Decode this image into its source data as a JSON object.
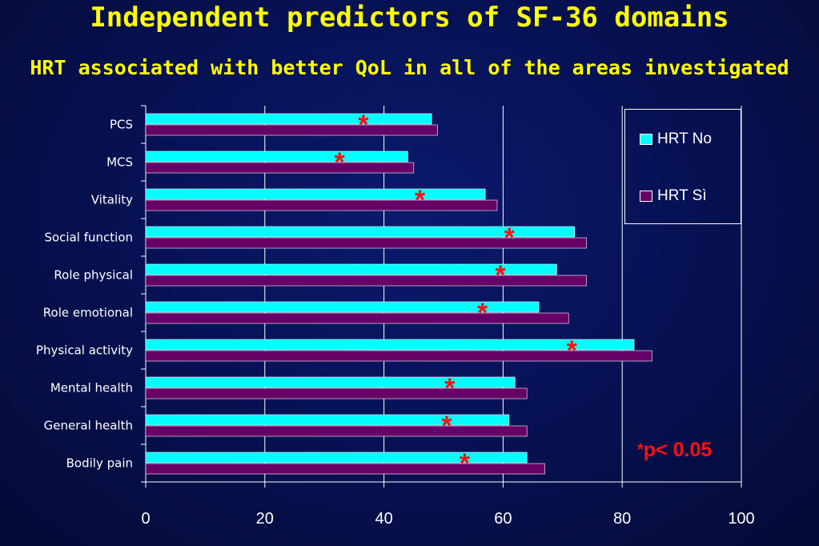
{
  "title": "Independent predictors of SF-36 domains",
  "subtitle": "HRT associated with better QoL in all of the areas investigated",
  "note": {
    "symbol": "*",
    "text": "p< 0.05"
  },
  "colors": {
    "hrt_no": "#00ffff",
    "hrt_si": "#660066",
    "star": "#ff1010",
    "axis": "#ffffff"
  },
  "chart_data": {
    "type": "bar",
    "orientation": "horizontal",
    "categories": [
      "PCS",
      "MCS",
      "Vitality",
      "Social function",
      "Role physical",
      "Role emotional",
      "Physical activity",
      "Mental health",
      "General health",
      "Bodily pain"
    ],
    "series": [
      {
        "name": "HRT No",
        "values": [
          48,
          44,
          57,
          72,
          69,
          66,
          82,
          62,
          61,
          64
        ]
      },
      {
        "name": "HRT Sì",
        "values": [
          49,
          45,
          59,
          74,
          74,
          71,
          85,
          64,
          64,
          67
        ]
      }
    ],
    "significance_marker": "*",
    "significant": [
      true,
      true,
      true,
      true,
      true,
      true,
      true,
      true,
      true,
      true
    ],
    "xlim": [
      0,
      100
    ],
    "xticks": [
      0,
      20,
      40,
      60,
      80,
      100
    ],
    "grid": "vertical",
    "legend_position": "top-right"
  }
}
